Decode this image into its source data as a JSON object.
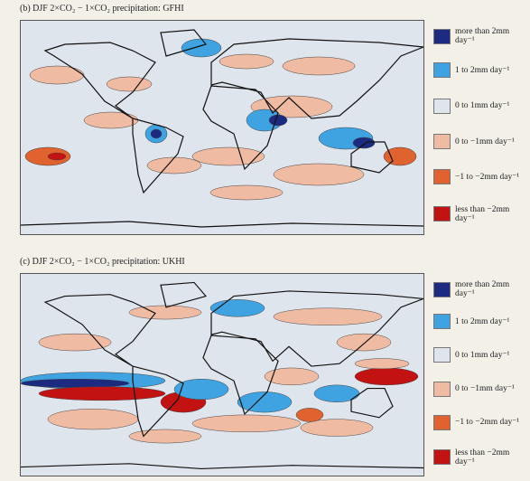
{
  "panels": [
    {
      "title": "(b) DJF 2×CO₂ − 1×CO₂ precipitation: GFHI",
      "legend": [
        {
          "label": "more than 2mm day⁻¹",
          "color": "#1c2a80"
        },
        {
          "label": "1 to 2mm day⁻¹",
          "color": "#3ea3e0"
        },
        {
          "label": "0 to 1mm day⁻¹",
          "color": "#dfe5ec"
        },
        {
          "label": "0 to −1mm day⁻¹",
          "color": "#f0bba3"
        },
        {
          "label": "−1 to −2mm day⁻¹",
          "color": "#e0622f"
        },
        {
          "label": "less than −2mm day⁻¹",
          "color": "#c21212"
        }
      ]
    },
    {
      "title": "(c) DJF 2×CO₂ − 1×CO₂ precipitation: UKHI",
      "legend": [
        {
          "label": "more than 2mm day⁻¹",
          "color": "#1c2a80"
        },
        {
          "label": "1 to 2mm day⁻¹",
          "color": "#3ea3e0"
        },
        {
          "label": "0 to 1mm day⁻¹",
          "color": "#dfe5ec"
        },
        {
          "label": "0 to −1mm day⁻¹",
          "color": "#f0bba3"
        },
        {
          "label": "−1 to −2mm day⁻¹",
          "color": "#e0622f"
        },
        {
          "label": "less than −2mm day⁻¹",
          "color": "#c21212"
        }
      ]
    }
  ]
}
